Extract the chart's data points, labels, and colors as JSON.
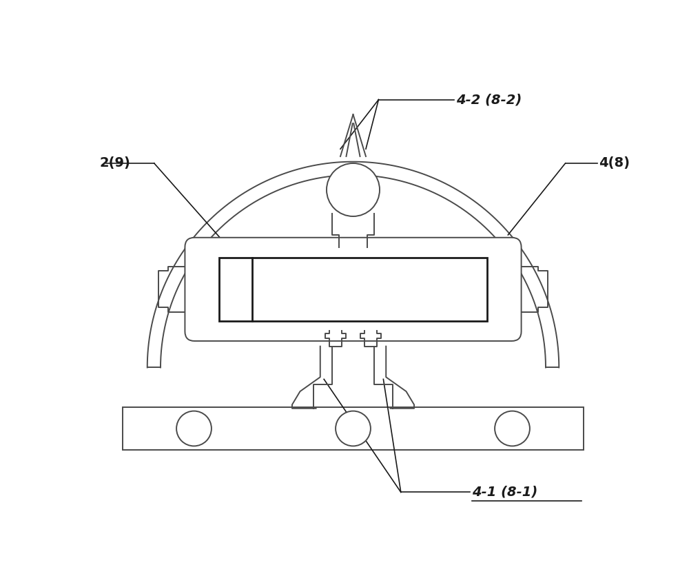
{
  "bg_color": "#ffffff",
  "lc": "#4a4a4a",
  "lc_dark": "#1a1a1a",
  "fig_width": 10.0,
  "fig_height": 8.52,
  "labels": {
    "top": "4-2 (8-2)",
    "left": "2(9)",
    "right": "4(8)",
    "bottom": "4-1 (8-1)"
  },
  "lw": 1.4,
  "lw_thick": 2.0,
  "lw_ann": 1.2
}
